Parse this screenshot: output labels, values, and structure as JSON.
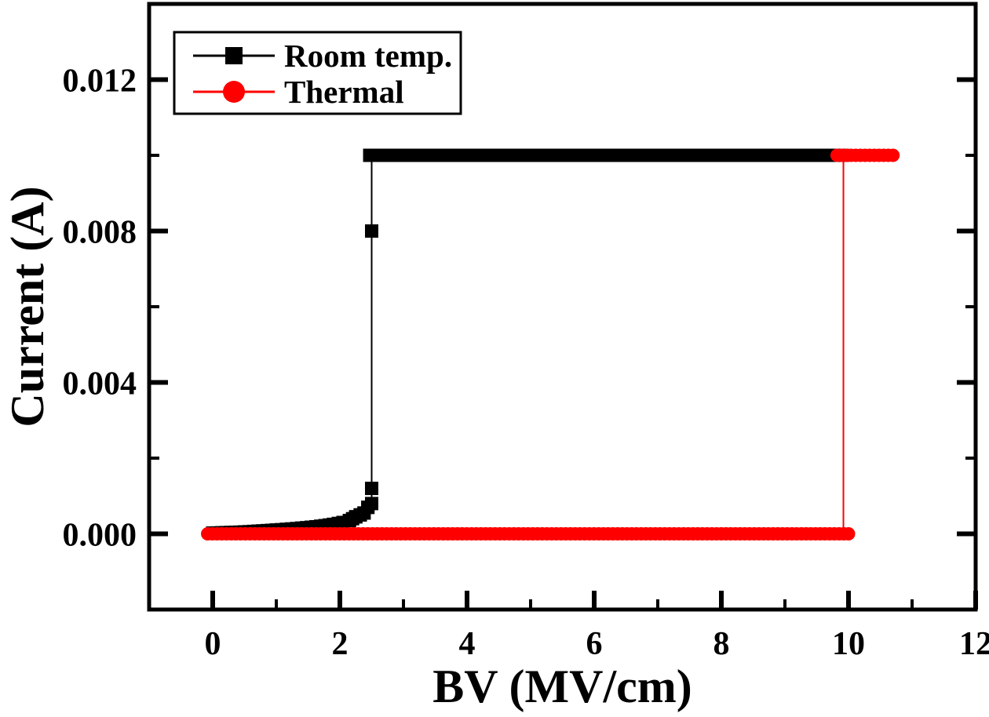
{
  "chart_data": {
    "type": "line",
    "title": "",
    "xlabel": "BV (MV/cm)",
    "ylabel": "Current (A)",
    "xlim": [
      -1,
      12
    ],
    "ylim": [
      -0.002,
      0.014
    ],
    "grid": false,
    "x_major_ticks": [
      0,
      2,
      4,
      6,
      8,
      10,
      12
    ],
    "x_major_tick_labels": [
      "0",
      "2",
      "4",
      "6",
      "8",
      "10",
      "12"
    ],
    "x_minor_ticks": [
      1,
      3,
      5,
      7,
      9,
      11
    ],
    "y_major_ticks": [
      0.0,
      0.004,
      0.008,
      0.012
    ],
    "y_major_tick_labels": [
      "0.000",
      "0.004",
      "0.008",
      "0.012"
    ],
    "y_minor_ticks": [
      0.002,
      0.006,
      0.01
    ],
    "legend": {
      "position": "top-left",
      "entries": [
        {
          "label": "Room temp.",
          "marker": "square",
          "color": "#000000"
        },
        {
          "label": "Thermal",
          "marker": "circle",
          "color": "#ff0000"
        }
      ]
    },
    "series": [
      {
        "name": "Room temp.",
        "color": "#000000",
        "marker": "square",
        "breakdown_MV_per_cm": 2.5,
        "compliance_A": 0.01,
        "description": "Leakage current rises slowly with field, hard breakdown at ~2.5 MV/cm, then current compliance plateau of 0.01 A out to ~9.9 MV/cm",
        "runs": [
          [
            [
              0.0,
              2e-05
            ],
            [
              0.5,
              5e-05
            ],
            [
              1.0,
              0.0001
            ],
            [
              1.4,
              0.00015
            ],
            [
              1.7,
              0.0002
            ],
            [
              1.9,
              0.00025
            ],
            [
              2.05,
              0.0003
            ],
            [
              2.15,
              0.00035
            ],
            [
              2.25,
              0.00045
            ],
            [
              2.32,
              0.0005
            ],
            [
              2.38,
              0.00055
            ],
            [
              2.44,
              0.0007
            ],
            [
              2.5,
              0.0008
            ]
          ],
          [
            [
              2.47,
              0.01
            ],
            [
              9.9,
              0.01
            ]
          ]
        ],
        "extra_points": [
          [
            2.5,
            0.0012
          ],
          [
            2.5,
            0.008
          ]
        ],
        "jump_line": [
          [
            2.5,
            0.0009
          ],
          [
            2.5,
            0.0099
          ]
        ]
      },
      {
        "name": "Thermal",
        "color": "#ff0000",
        "marker": "circle",
        "breakdown_MV_per_cm": 9.9,
        "compliance_A": 0.01,
        "description": "Current stays near 0 A until breakdown at ~9.9 MV/cm, then jumps to the 0.01 A compliance level out to ~10.7 MV/cm",
        "runs": [
          [
            [
              -0.08,
              0.0
            ],
            [
              10.0,
              0.0
            ]
          ],
          [
            [
              9.82,
              0.01
            ],
            [
              10.7,
              0.01
            ]
          ]
        ],
        "extra_points": [],
        "jump_line": [
          [
            9.92,
            0.0001
          ],
          [
            9.92,
            0.0099
          ]
        ]
      }
    ]
  }
}
